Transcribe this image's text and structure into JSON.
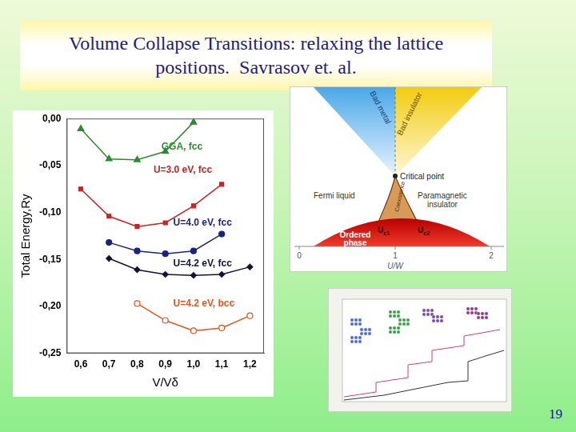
{
  "slide": {
    "title_lines": [
      "Volume Collapse Transitions: relaxing the lattice",
      "positions.  Savrasov et. al."
    ],
    "page": 19
  },
  "chart_data": {
    "type": "line",
    "x_label": "V/Vδ",
    "y_label": "Total Energy,Ry",
    "x": [
      0.6,
      0.7,
      0.8,
      0.9,
      1.0,
      1.1,
      1.2
    ],
    "xlim": [
      0.55,
      1.25
    ],
    "xticks": [
      {
        "value": 0.6,
        "label": "0,6"
      },
      {
        "value": 0.7,
        "label": "0,7"
      },
      {
        "value": 0.8,
        "label": "0,8"
      },
      {
        "value": 0.9,
        "label": "0,9"
      },
      {
        "value": 1.0,
        "label": "1,0"
      },
      {
        "value": 1.1,
        "label": "1,1"
      },
      {
        "value": 1.2,
        "label": "1,2"
      }
    ],
    "ylim": [
      -0.25,
      0
    ],
    "yticks": [
      {
        "value": 0,
        "label": "0,00"
      },
      {
        "value": -0.05,
        "label": "-0,05"
      },
      {
        "value": -0.1,
        "label": "-0,10"
      },
      {
        "value": -0.15,
        "label": "-0,15"
      },
      {
        "value": -0.2,
        "label": "-0,20"
      },
      {
        "value": -0.25,
        "label": "-0,25"
      }
    ],
    "grid": false,
    "series": [
      {
        "name": "GGA, fcc",
        "color": "#2e8b2e",
        "marker": "triangle",
        "values": [
          -0.011,
          -0.043,
          -0.044,
          -0.035,
          -0.004,
          null,
          null
        ]
      },
      {
        "name": "U=3.0 eV, fcc",
        "color": "#cc2222",
        "marker": "square",
        "values": [
          -0.075,
          -0.104,
          -0.115,
          -0.111,
          -0.093,
          -0.07,
          null
        ]
      },
      {
        "name": "U=4.0 eV, fcc",
        "color": "#1a237e",
        "marker": "circle",
        "values": [
          null,
          -0.132,
          -0.141,
          -0.144,
          -0.141,
          -0.123,
          null
        ]
      },
      {
        "name": "U=4.2 eV, fcc",
        "color": "#12123a",
        "marker": "diamond",
        "values": [
          null,
          -0.149,
          -0.161,
          -0.166,
          -0.167,
          -0.166,
          -0.158
        ]
      },
      {
        "name": "U=4.2 eV, bcc",
        "color": "#e8531f",
        "marker": "open_circle",
        "values": [
          null,
          null,
          -0.197,
          -0.215,
          -0.226,
          -0.223,
          -0.21
        ]
      }
    ]
  },
  "phase_diagram": {
    "x_label": "U/W",
    "xticks": [
      0,
      1,
      2
    ],
    "texts": {
      "bad_metal": "Bad metal",
      "bad_insulator": "Bad insulator",
      "critical_point": "Critical point",
      "fermi_liquid": "Fermi liquid",
      "paramagnetic_insulator": [
        "Paramagnetic",
        "insulator"
      ],
      "ordered_phase": [
        "Ordered",
        "phase"
      ],
      "coexistence": "Coexistence",
      "uc1": {
        "main": "U",
        "sub": "c1"
      },
      "uc2": {
        "main": "U",
        "sub": "c2"
      }
    }
  }
}
